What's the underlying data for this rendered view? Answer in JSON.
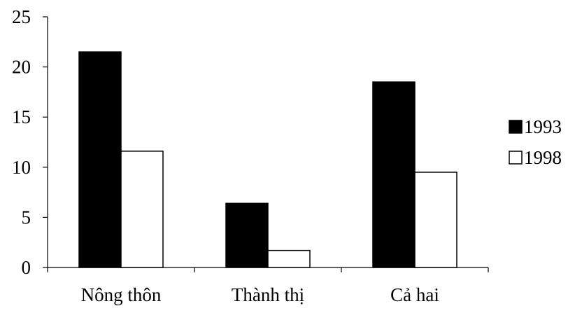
{
  "chart_data": {
    "type": "bar",
    "title": "",
    "xlabel": "",
    "ylabel": "",
    "categories": [
      "Nông thôn",
      "Thành thị",
      "Cả hai"
    ],
    "series": [
      {
        "name": "1993",
        "values": [
          21.5,
          6.4,
          18.5
        ],
        "color": "#000000",
        "fill": "#000000"
      },
      {
        "name": "1998",
        "values": [
          11.6,
          1.7,
          9.5
        ],
        "color": "#000000",
        "fill": "#ffffff"
      }
    ],
    "ylim": [
      0,
      25
    ],
    "yticks": [
      "0",
      "5",
      "10",
      "15",
      "20",
      "25"
    ],
    "grid": false,
    "legend_position": "right"
  }
}
